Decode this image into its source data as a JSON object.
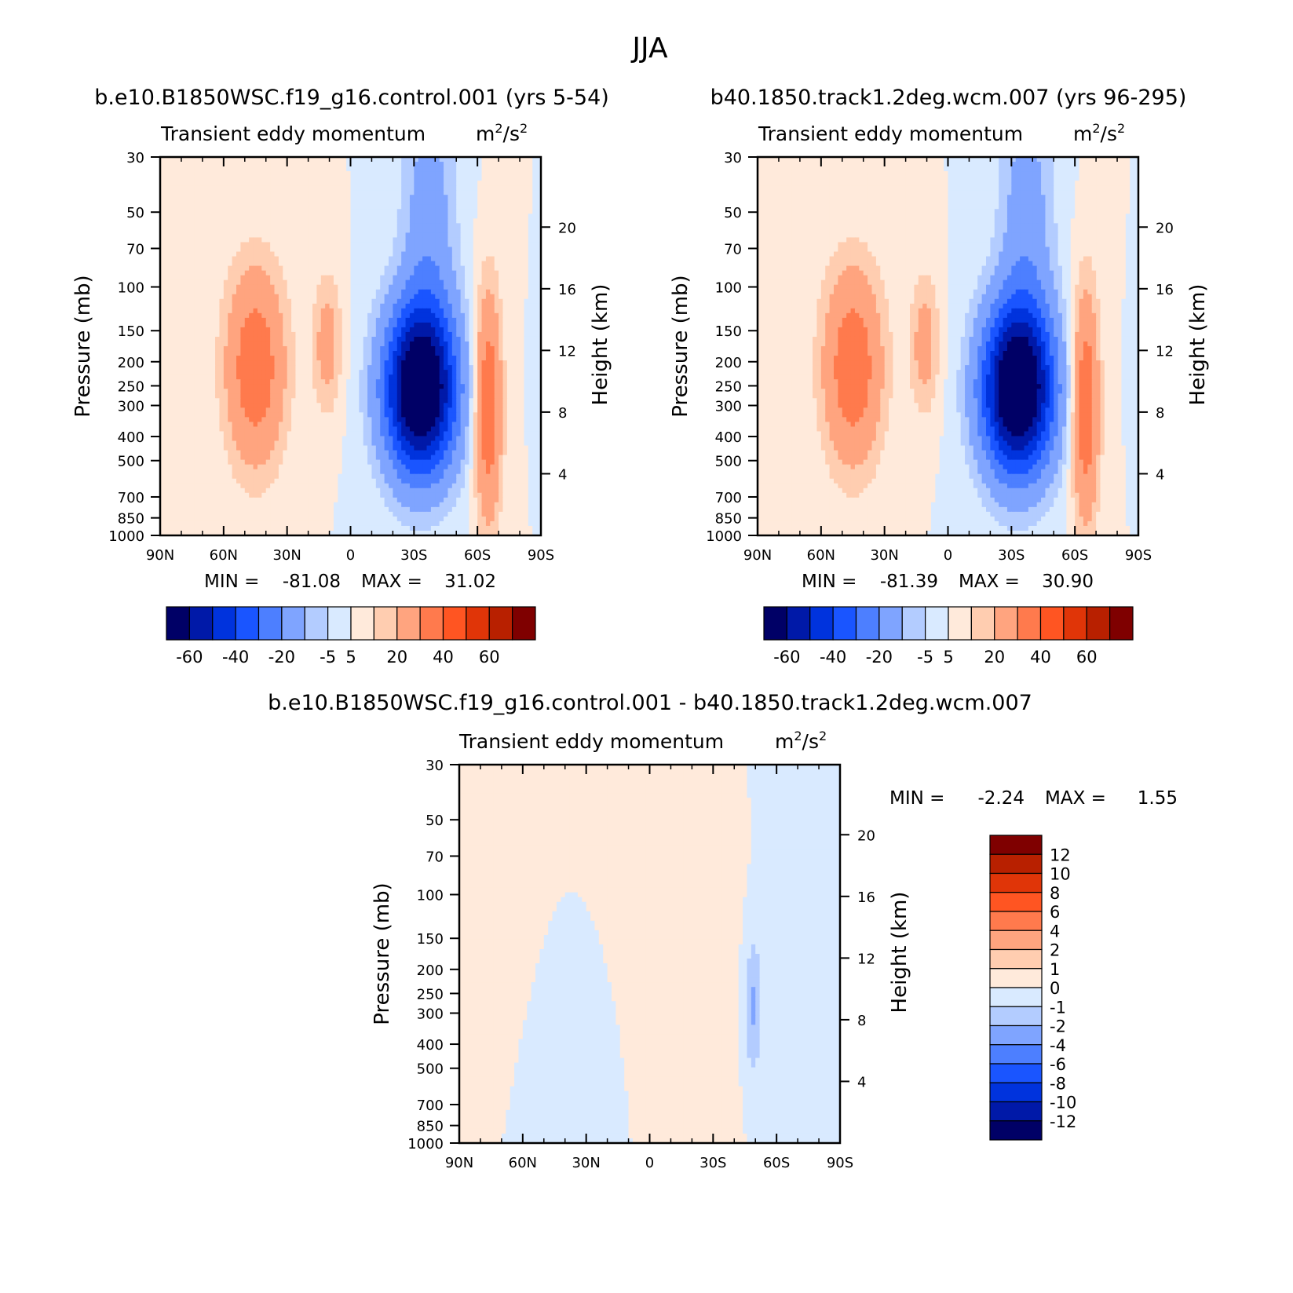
{
  "figure": {
    "season_title": "JJA",
    "common": {
      "panel_title": "Transient eddy momentum",
      "units_base": "m",
      "units_mid": "/s",
      "units_sup": "2",
      "ylabel_left": "Pressure (mb)",
      "ylabel_right": "Height (km)",
      "xticks": [
        "90N",
        "60N",
        "30N",
        "0",
        "30S",
        "60S",
        "90S"
      ],
      "pressure_ticks": [
        "30",
        "50",
        "70",
        "100",
        "150",
        "200",
        "250",
        "300",
        "400",
        "500",
        "700",
        "850",
        "1000"
      ],
      "height_ticks": [
        "20",
        "16",
        "12",
        "8",
        "4"
      ],
      "min_label": "MIN =",
      "max_label": "MAX ="
    },
    "panels": [
      {
        "case_title": "b.e10.B1850WSC.f19_g16.control.001 (yrs 5-54)",
        "min_value": "-81.08",
        "max_value": "31.02",
        "colorbar_labels": [
          "-60",
          "-40",
          "-20",
          "-5",
          "5",
          "20",
          "40",
          "60"
        ]
      },
      {
        "case_title": "b40.1850.track1.2deg.wcm.007 (yrs 96-295)",
        "min_value": "-81.39",
        "max_value": "30.90",
        "colorbar_labels": [
          "-60",
          "-40",
          "-20",
          "-5",
          "5",
          "20",
          "40",
          "60"
        ]
      },
      {
        "case_title": "b.e10.B1850WSC.f19_g16.control.001 - b40.1850.track1.2deg.wcm.007",
        "min_value": "-2.24",
        "max_value": "1.55",
        "colorbar_labels": [
          "12",
          "10",
          "8",
          "6",
          "4",
          "2",
          "1",
          "0",
          "-1",
          "-2",
          "-4",
          "-6",
          "-8",
          "-10",
          "-12"
        ]
      }
    ],
    "palette": [
      "#000066",
      "#0019a8",
      "#0033dd",
      "#1a55ff",
      "#4d7fff",
      "#7fa4ff",
      "#b3ccff",
      "#d9eaff",
      "#ffeadb",
      "#ffcdb0",
      "#ffa47f",
      "#ff7a4d",
      "#ff5522",
      "#e03508",
      "#b82000",
      "#7f0000"
    ]
  },
  "chart_data": [
    {
      "type": "heatmap",
      "title": "Transient eddy momentum",
      "xlabel": "",
      "ylabel": "Pressure (mb)",
      "ylabel_right": "Height (km)",
      "x_range": [
        90,
        -90
      ],
      "y_range_mb": [
        1000,
        30
      ],
      "y_scale": "log",
      "levels": [
        -60,
        -50,
        -40,
        -30,
        -20,
        -10,
        -5,
        0,
        5,
        10,
        20,
        30,
        40,
        50,
        60
      ],
      "min": -81.08,
      "max": 31.02,
      "features": [
        {
          "lat": -33,
          "p": 260,
          "value": -81,
          "sigma_lat": 12,
          "sigma_lnp": 0.55
        },
        {
          "lat": -37,
          "p": 55,
          "value": -15,
          "sigma_lat": 9,
          "sigma_lnp": 0.9
        },
        {
          "lat": 45,
          "p": 210,
          "value": 28,
          "sigma_lat": 10,
          "sigma_lnp": 0.65
        },
        {
          "lat": 11,
          "p": 170,
          "value": 14,
          "sigma_lat": 5,
          "sigma_lnp": 0.45
        },
        {
          "lat": -65,
          "p": 300,
          "value": 30,
          "sigma_lat": 4.5,
          "sigma_lnp": 0.75
        }
      ]
    },
    {
      "type": "heatmap",
      "title": "Transient eddy momentum",
      "xlabel": "",
      "ylabel": "Pressure (mb)",
      "ylabel_right": "Height (km)",
      "x_range": [
        90,
        -90
      ],
      "y_range_mb": [
        1000,
        30
      ],
      "y_scale": "log",
      "levels": [
        -60,
        -50,
        -40,
        -30,
        -20,
        -10,
        -5,
        0,
        5,
        10,
        20,
        30,
        40,
        50,
        60
      ],
      "min": -81.39,
      "max": 30.9,
      "features": [
        {
          "lat": -33,
          "p": 260,
          "value": -81,
          "sigma_lat": 12,
          "sigma_lnp": 0.55
        },
        {
          "lat": -37,
          "p": 55,
          "value": -15,
          "sigma_lat": 9,
          "sigma_lnp": 0.9
        },
        {
          "lat": 45,
          "p": 210,
          "value": 28,
          "sigma_lat": 10,
          "sigma_lnp": 0.65
        },
        {
          "lat": 11,
          "p": 170,
          "value": 14,
          "sigma_lat": 5,
          "sigma_lnp": 0.45
        },
        {
          "lat": -65,
          "p": 300,
          "value": 30,
          "sigma_lat": 4.5,
          "sigma_lnp": 0.75
        }
      ]
    },
    {
      "type": "heatmap",
      "title": "Transient eddy momentum",
      "xlabel": "",
      "ylabel": "Pressure (mb)",
      "ylabel_right": "Height (km)",
      "x_range": [
        90,
        -90
      ],
      "y_range_mb": [
        1000,
        30
      ],
      "y_scale": "log",
      "levels": [
        -12,
        -10,
        -8,
        -6,
        -4,
        -2,
        -1,
        0,
        1,
        2,
        4,
        6,
        8,
        10,
        12
      ],
      "min": -2.24,
      "max": 1.55,
      "features": [
        {
          "lat": -49,
          "p": 280,
          "value": -2.2,
          "sigma_lat": 3,
          "sigma_lnp": 0.45
        },
        {
          "lat": 15,
          "p": 60,
          "value": 0.6,
          "sigma_lat": 18,
          "sigma_lnp": 1.0
        },
        {
          "lat": 30,
          "p": 300,
          "value": -0.5,
          "sigma_lat": 10,
          "sigma_lnp": 1.2
        },
        {
          "lat": -20,
          "p": 200,
          "value": 0.5,
          "sigma_lat": 15,
          "sigma_lnp": 1.0
        },
        {
          "lat": -70,
          "p": 150,
          "value": -0.6,
          "sigma_lat": 10,
          "sigma_lnp": 1.5
        }
      ]
    }
  ]
}
